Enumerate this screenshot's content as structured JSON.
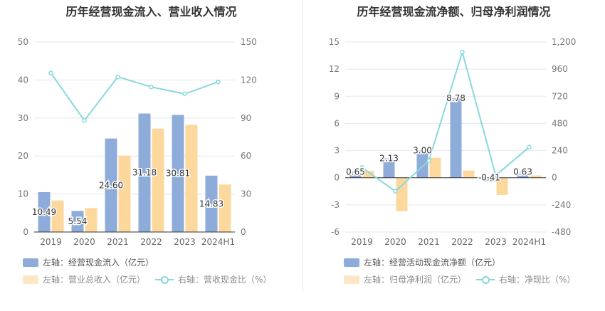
{
  "chart_data": [
    {
      "type": "bar",
      "title": "历年经营现金流入、营业收入情况",
      "categories": [
        "2019",
        "2020",
        "2021",
        "2022",
        "2023",
        "2024H1"
      ],
      "y_left": {
        "ylim": [
          0,
          50
        ],
        "ticks": [
          "0",
          "10",
          "20",
          "30",
          "40",
          "50"
        ]
      },
      "y_right": {
        "ylim": [
          0,
          150
        ],
        "ticks": [
          "0",
          "30",
          "60",
          "90",
          "120",
          "150"
        ]
      },
      "series": [
        {
          "name": "左轴：经营现金流入（亿元）",
          "axis": "left",
          "kind": "bar",
          "color": "#8eacd9",
          "values": [
            10.49,
            5.54,
            24.6,
            31.18,
            30.81,
            14.83
          ],
          "labels": [
            "10.49",
            "5.54",
            "24.60",
            "31.18",
            "30.81",
            "14.83"
          ]
        },
        {
          "name": "左轴：营业总收入（亿元）",
          "axis": "left",
          "kind": "bar",
          "color": "#fdd89d",
          "values": [
            8.3,
            6.3,
            20.1,
            27.2,
            28.2,
            12.5
          ]
        },
        {
          "name": "右轴：营收现金比（%）",
          "axis": "right",
          "kind": "line",
          "color": "#88d8de",
          "values": [
            125.5,
            88.0,
            122.5,
            114.5,
            109.0,
            118.5
          ]
        }
      ],
      "legend": [
        {
          "label": "左轴：经营现金流入（亿元）",
          "color": "#8eacd9"
        },
        {
          "label": "左轴：营业总收入（亿元）",
          "color": "#fdd89d"
        },
        {
          "label": "右轴：营收现金比（%）",
          "color": "#88d8de"
        }
      ]
    },
    {
      "type": "bar",
      "title": "历年经营现金流净额、归母净利润情况",
      "categories": [
        "2019",
        "2020",
        "2021",
        "2022",
        "2023",
        "2024H1"
      ],
      "y_left": {
        "ylim": [
          -6,
          15
        ],
        "ticks": [
          "-6",
          "-3",
          "0",
          "3",
          "6",
          "9",
          "12",
          "15"
        ]
      },
      "y_right": {
        "ylim": [
          -480,
          1200
        ],
        "ticks": [
          "-480",
          "-240",
          "0",
          "240",
          "480",
          "720",
          "960",
          "1,200"
        ]
      },
      "series": [
        {
          "name": "左轴：经营活动现金流净额（亿元）",
          "axis": "left",
          "kind": "bar",
          "color": "#8eacd9",
          "values": [
            0.65,
            2.13,
            3.0,
            8.78,
            -0.41,
            0.63
          ],
          "labels": [
            "0.65",
            "2.13",
            "3.00",
            "8.78",
            "-0.41",
            "0.63"
          ]
        },
        {
          "name": "左轴：归母净利润（亿元）",
          "axis": "left",
          "kind": "bar",
          "color": "#fdd89d",
          "values": [
            0.75,
            -3.7,
            2.2,
            0.8,
            -1.9,
            0.25
          ]
        },
        {
          "name": "右轴：净现比（%）",
          "axis": "right",
          "kind": "line",
          "color": "#88d8de",
          "values": [
            90,
            -120,
            150,
            1110,
            20,
            270
          ]
        }
      ],
      "legend": [
        {
          "label": "左轴：经营活动现金流净额（亿元）",
          "color": "#8eacd9"
        },
        {
          "label": "左轴：归母净利润（亿元）",
          "color": "#fdd89d"
        },
        {
          "label": "右轴：净现比（%）",
          "color": "#88d8de"
        }
      ]
    }
  ]
}
